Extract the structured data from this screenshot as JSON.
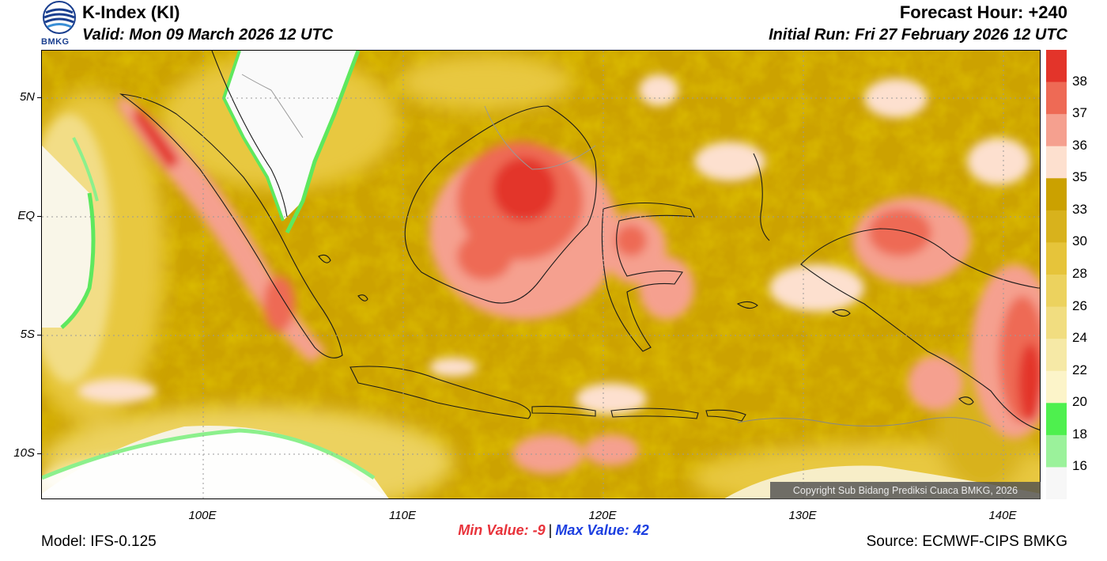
{
  "header": {
    "title": "K-Index (KI)",
    "valid": "Valid: Mon 09 March 2026 12 UTC",
    "forecast_hour": "Forecast Hour: +240",
    "initial_run": "Initial Run: Fri 27 February 2026 12 UTC"
  },
  "logo": {
    "text": "BMKG"
  },
  "map": {
    "lat_labels": [
      "5N",
      "EQ",
      "5S",
      "10S"
    ],
    "lon_labels": [
      "100E",
      "110E",
      "120E",
      "130E",
      "140E"
    ],
    "copyright": "Copyright Sub Bidang Prediksi Cuaca BMKG, 2026"
  },
  "colorbar": {
    "labels": [
      "38",
      "37",
      "36",
      "35",
      "33",
      "30",
      "28",
      "26",
      "24",
      "22",
      "20",
      "18",
      "16"
    ],
    "colors": [
      "#e3342a",
      "#ee6a55",
      "#f5a08f",
      "#fde0cf",
      "#cba100",
      "#d8b21c",
      "#e6c43a",
      "#ecd25e",
      "#f1dd80",
      "#f6e9a6",
      "#fcf4c9",
      "#4ef04e",
      "#9bf29b",
      "#f7f7f7"
    ]
  },
  "footer": {
    "model": "Model: IFS-0.125",
    "min_label": "Min Value:  -9",
    "max_label": "Max Value:  42",
    "source": "Source: ECMWF-CIPS BMKG"
  }
}
